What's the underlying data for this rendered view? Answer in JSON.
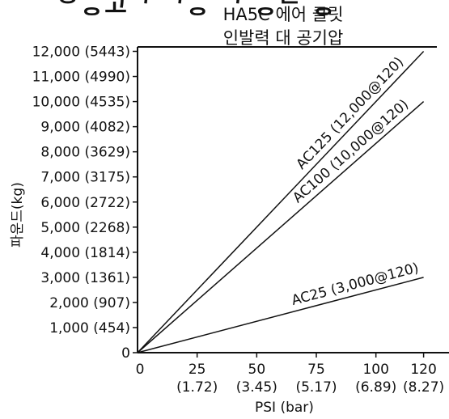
{
  "header": {
    "top_cut_text": "ᄋᆼ고ᄀ ᄀᆼ ᄀ ᆼᄅ ᆼ",
    "title_line1": "HA5C 에어 클릿",
    "title_line2": "인발력 대 공기압"
  },
  "chart_data": {
    "type": "line",
    "title": "HA5C 에어 클릿 인발력 대 공기압",
    "xlabel": "PSI (bar)",
    "ylabel": "파운드(kg)",
    "xlim": [
      0,
      120
    ],
    "ylim": [
      0,
      12000
    ],
    "x_ticks": [
      {
        "value": 0,
        "label": "0",
        "sub": ""
      },
      {
        "value": 25,
        "label": "25",
        "sub": "(1.72)"
      },
      {
        "value": 50,
        "label": "50",
        "sub": "(3.45)"
      },
      {
        "value": 75,
        "label": "75",
        "sub": "(5.17)"
      },
      {
        "value": 100,
        "label": "100",
        "sub": "(6.89)"
      },
      {
        "value": 120,
        "label": "120",
        "sub": "(8.27)"
      }
    ],
    "y_ticks": [
      {
        "value": 0,
        "label": "0"
      },
      {
        "value": 1000,
        "label": "1,000 (454)"
      },
      {
        "value": 2000,
        "label": "2,000 (907)"
      },
      {
        "value": 3000,
        "label": "3,000 (1361)"
      },
      {
        "value": 4000,
        "label": "4,000 (1814)"
      },
      {
        "value": 5000,
        "label": "5,000 (2268)"
      },
      {
        "value": 6000,
        "label": "6,000 (2722)"
      },
      {
        "value": 7000,
        "label": "7,000 (3175)"
      },
      {
        "value": 8000,
        "label": "8,000 (3629)"
      },
      {
        "value": 9000,
        "label": "9,000 (4082)"
      },
      {
        "value": 10000,
        "label": "10,000 (4535)"
      },
      {
        "value": 11000,
        "label": "11,000 (4990)"
      },
      {
        "value": 12000,
        "label": "12,000 (5443)"
      }
    ],
    "series": [
      {
        "name": "AC125 (12,000@120)",
        "x": [
          0,
          120
        ],
        "y": [
          0,
          12000
        ]
      },
      {
        "name": "AC100 (10,000@120)",
        "x": [
          0,
          120
        ],
        "y": [
          0,
          10000
        ]
      },
      {
        "name": "AC25 (3,000@120)",
        "x": [
          0,
          120
        ],
        "y": [
          0,
          3000
        ]
      }
    ],
    "grid": false,
    "legend": "inline"
  }
}
